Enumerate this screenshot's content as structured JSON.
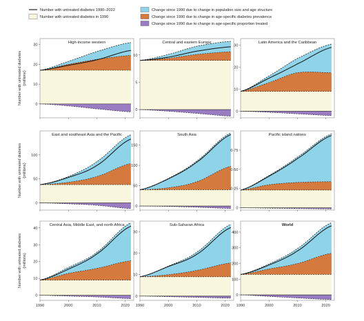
{
  "legend": {
    "items": [
      {
        "key": "line",
        "label": "Number with untreated diabetes 1990–2022",
        "color": "#222222"
      },
      {
        "key": "base",
        "label": "Number with untreated diabetes in 1990",
        "color": "#f8f6dc"
      },
      {
        "key": "pop",
        "label": "Change since 1990 due to change in population size and age structure",
        "color": "#8fd3e8"
      },
      {
        "key": "prev",
        "label": "Change since 1990 due to change in age-specific diabetes prevalence",
        "color": "#d47a3e"
      },
      {
        "key": "treat",
        "label": "Change since 1990 due to change in age-specific proportion treated",
        "color": "#9a7cc2"
      }
    ]
  },
  "ylabel_rows": [
    [
      "Number with untreated diabetes",
      "(millions)"
    ],
    [
      "Number with untreated diabetes",
      "(millions)"
    ],
    [
      "Number with untreated diabetes",
      "(millions)"
    ]
  ],
  "chart_data": [
    {
      "type": "area",
      "title": "High-income western",
      "title_bold": false,
      "x": [
        1990,
        2000,
        2010,
        2022
      ],
      "base": 17,
      "pop": [
        17,
        20,
        22.5,
        24.5
      ],
      "prev": [
        17,
        18.7,
        20.8,
        23.5
      ],
      "treat": [
        0,
        -1,
        -2.5,
        -4
      ],
      "line": [
        17,
        19.5,
        22.3,
        27
      ],
      "top": [
        17,
        21.5,
        26.5,
        31
      ],
      "ylim": [
        -7,
        33
      ],
      "yticks": [
        0,
        10,
        20,
        30
      ],
      "yticklabels": [
        "0",
        "10",
        "20",
        "30"
      ],
      "xticks": [
        1990,
        2000,
        2010,
        2020
      ],
      "xticklabels": [
        "1990",
        "2000",
        "2010",
        "2020"
      ]
    },
    {
      "type": "area",
      "title": "Central and eastern Europe",
      "title_bold": false,
      "x": [
        1990,
        2000,
        2010,
        2022
      ],
      "base": 9,
      "pop": [
        9,
        9.4,
        10.1,
        10.6
      ],
      "prev": [
        9,
        9.9,
        11.3,
        12.4
      ],
      "treat": [
        0,
        -0.3,
        -0.7,
        -1.2
      ],
      "line": [
        9,
        9.6,
        10.7,
        11.5
      ],
      "top": [
        9,
        10.1,
        11.6,
        12.5
      ],
      "ylim": [
        -1.5,
        13
      ],
      "yticks": [
        0,
        5,
        10
      ],
      "yticklabels": [
        "0",
        "5",
        "10"
      ],
      "xticks": [
        1990,
        2000,
        2010,
        2020
      ],
      "xticklabels": [
        "1990",
        "2000",
        "2010",
        "2020"
      ]
    },
    {
      "type": "area",
      "title": "Latin America and the Caribbean",
      "title_bold": false,
      "x": [
        1990,
        2000,
        2010,
        2022
      ],
      "base": 9,
      "pop": [
        9,
        13,
        17.5,
        17.5
      ],
      "prev": [
        9,
        16,
        23,
        30
      ],
      "treat": [
        0,
        -0.5,
        -1.2,
        -2
      ],
      "line": [
        9,
        15,
        21.5,
        29
      ],
      "top": [
        9,
        16,
        24,
        30.5
      ],
      "ylim": [
        -3,
        33
      ],
      "yticks": [
        0,
        10,
        20,
        30
      ],
      "yticklabels": [
        "0",
        "10",
        "20",
        "30"
      ],
      "xticks": [
        1990,
        2000,
        2010,
        2020
      ],
      "xticklabels": [
        "1990",
        "2000",
        "2010",
        "2020"
      ]
    },
    {
      "type": "area",
      "title": "East and southeast Asia and the Pacific",
      "title_bold": false,
      "x": [
        1990,
        2000,
        2010,
        2022
      ],
      "base": 38,
      "pop": [
        38,
        43,
        55,
        82
      ],
      "prev": [
        38,
        55,
        85,
        140
      ],
      "treat": [
        0,
        -2,
        -5,
        -12
      ],
      "line": [
        38,
        53,
        78,
        133
      ],
      "top": [
        38,
        55,
        86,
        142
      ],
      "ylim": [
        -15,
        150
      ],
      "yticks": [
        0,
        50,
        100
      ],
      "yticklabels": [
        "0",
        "50",
        "100"
      ],
      "xticks": [
        1990,
        2000,
        2010,
        2020
      ],
      "xticklabels": [
        "1990",
        "2000",
        "2010",
        "2020"
      ]
    },
    {
      "type": "area",
      "title": "South Asia",
      "title_bold": false,
      "x": [
        1990,
        2000,
        2010,
        2022
      ],
      "base": 40,
      "pop": [
        40,
        45,
        60,
        98
      ],
      "prev": [
        40,
        68,
        110,
        178
      ],
      "treat": [
        0,
        -1,
        -3,
        -6
      ],
      "line": [
        40,
        67,
        108,
        176
      ],
      "top": [
        40,
        68,
        111,
        180
      ],
      "ylim": [
        -10,
        185
      ],
      "yticks": [
        0,
        50,
        100,
        150
      ],
      "yticklabels": [
        "0",
        "50",
        "100",
        "150"
      ],
      "xticks": [
        1990,
        2000,
        2010,
        2020
      ],
      "xticklabels": [
        "1990",
        "2000",
        "2010",
        "2020"
      ]
    },
    {
      "type": "area",
      "title": "Pacific island nations",
      "title_bold": false,
      "x": [
        1990,
        2000,
        2010,
        2022
      ],
      "base": 0.23,
      "pop": [
        0.23,
        0.3,
        0.33,
        0.34
      ],
      "prev": [
        0.23,
        0.42,
        0.65,
        0.95
      ],
      "treat": [
        0,
        -0.005,
        -0.01,
        -0.015
      ],
      "line": [
        0.23,
        0.41,
        0.64,
        0.94
      ],
      "top": [
        0.23,
        0.42,
        0.66,
        0.96
      ],
      "ylim": [
        -0.03,
        1.0
      ],
      "yticks": [
        0,
        0.25,
        0.5,
        0.75
      ],
      "yticklabels": [
        "0",
        "0·25",
        "0·50",
        "0·75"
      ],
      "xticks": [
        1990,
        2000,
        2010,
        2020
      ],
      "xticklabels": [
        "1990",
        "2000",
        "2010",
        "2020"
      ]
    },
    {
      "type": "area",
      "title": "Central Asia, Middle East, and north Africa",
      "title_bold": false,
      "x": [
        1990,
        2000,
        2010,
        2022
      ],
      "base": 9,
      "pop": [
        9,
        13,
        16,
        20.5
      ],
      "prev": [
        9,
        16,
        25,
        42
      ],
      "treat": [
        0,
        -0.5,
        -1,
        -2
      ],
      "line": [
        9,
        15.5,
        24.5,
        41
      ],
      "top": [
        9,
        16.5,
        25.5,
        43
      ],
      "ylim": [
        -3,
        44
      ],
      "yticks": [
        0,
        10,
        20,
        30,
        40
      ],
      "yticklabels": [
        "0",
        "10",
        "20",
        "30",
        "40"
      ],
      "xticks": [
        1990,
        2000,
        2010,
        2020
      ],
      "xticklabels": [
        "1990",
        "2000",
        "2010",
        "2020"
      ]
    },
    {
      "type": "area",
      "title": "Sub-Saharan Africa",
      "title_bold": false,
      "x": [
        1990,
        2000,
        2010,
        2022
      ],
      "base": 9,
      "pop": [
        9,
        10,
        12,
        15.5
      ],
      "prev": [
        9,
        14,
        20,
        33
      ],
      "treat": [
        0,
        -0.3,
        -0.6,
        -1
      ],
      "line": [
        9,
        13.8,
        19.5,
        32
      ],
      "top": [
        9,
        14,
        20.5,
        33.5
      ],
      "ylim": [
        -2,
        35
      ],
      "yticks": [
        0,
        10,
        20,
        30
      ],
      "yticklabels": [
        "0",
        "10",
        "20",
        "30"
      ],
      "xticks": [
        1990,
        2000,
        2010,
        2020
      ],
      "xticklabels": [
        "1990",
        "2000",
        "2010",
        "2020"
      ]
    },
    {
      "type": "area",
      "title": "World",
      "title_bold": true,
      "x": [
        1990,
        2000,
        2010,
        2022
      ],
      "base": 130,
      "pop": [
        130,
        165,
        200,
        265
      ],
      "prev": [
        130,
        195,
        290,
        455
      ],
      "treat": [
        0,
        -10,
        -20,
        -30
      ],
      "line": [
        130,
        190,
        280,
        440
      ],
      "top": [
        130,
        197,
        295,
        460
      ],
      "ylim": [
        -35,
        470
      ],
      "yticks": [
        0,
        100,
        200,
        300,
        400
      ],
      "yticklabels": [
        "0",
        "100",
        "200",
        "300",
        "400"
      ],
      "xticks": [
        1990,
        2000,
        2010,
        2020
      ],
      "xticklabels": [
        "1990",
        "2000",
        "2010",
        "2020"
      ]
    }
  ]
}
